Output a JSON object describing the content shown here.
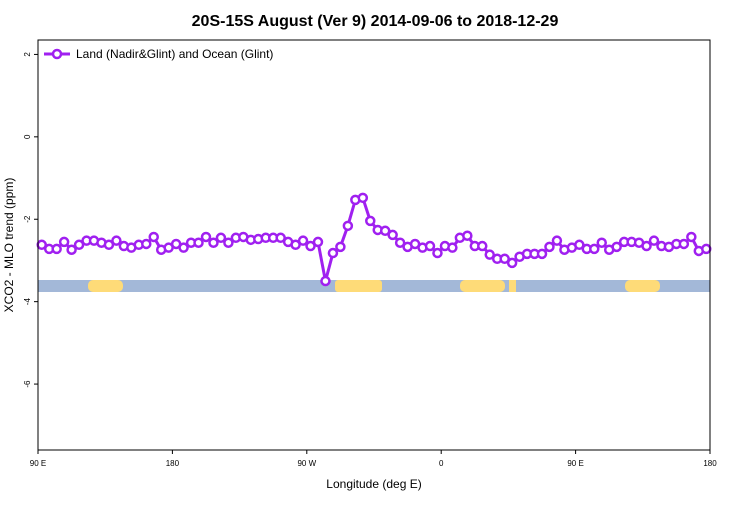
{
  "chart_data": {
    "type": "line",
    "title": "20S-15S August (Ver 9)   2014-09-06 to 2018-12-29",
    "x_label": "Longitude (deg E)",
    "y_label": "XCO2 - MLO trend (ppm)",
    "x": [
      92.5,
      97.5,
      102.5,
      107.5,
      112.5,
      117.5,
      122.5,
      127.5,
      132.5,
      137.5,
      142.5,
      147.5,
      152.5,
      157.5,
      162.5,
      167.5,
      172.5,
      177.5,
      182.5,
      187.5,
      192.5,
      197.5,
      202.5,
      207.5,
      212.5,
      217.5,
      222.5,
      227.5,
      232.5,
      237.5,
      242.5,
      247.5,
      252.5,
      257.5,
      262.5,
      267.5,
      272.5,
      277.5,
      282.5,
      287.5,
      292.5,
      297.5,
      302.5,
      307.5,
      312.5,
      317.5,
      322.5,
      327.5,
      332.5,
      337.5,
      342.5,
      347.5,
      352.5,
      357.5,
      362.5,
      367.5,
      372.5,
      377.5,
      382.5,
      387.5,
      392.5,
      397.5,
      402.5,
      407.5,
      412.5,
      417.5,
      422.5,
      427.5,
      432.5,
      437.5,
      442.5,
      447.5,
      452.5,
      457.5,
      462.5,
      467.5,
      472.5,
      477.5,
      482.5,
      487.5,
      492.5,
      497.5,
      502.5,
      507.5,
      512.5,
      517.5,
      522.5,
      527.5,
      532.5,
      537.5
    ],
    "series": [
      {
        "name": "Land (Nadir&Glint) and Ocean (Glint)",
        "color": "#a020f0",
        "values": [
          -2.62,
          -2.72,
          -2.72,
          -2.55,
          -2.74,
          -2.62,
          -2.52,
          -2.52,
          -2.57,
          -2.62,
          -2.52,
          -2.65,
          -2.69,
          -2.62,
          -2.6,
          -2.43,
          -2.74,
          -2.69,
          -2.6,
          -2.69,
          -2.57,
          -2.57,
          -2.43,
          -2.57,
          -2.45,
          -2.57,
          -2.45,
          -2.43,
          -2.5,
          -2.48,
          -2.45,
          -2.45,
          -2.45,
          -2.55,
          -2.62,
          -2.52,
          -2.65,
          -2.55,
          -3.5,
          -2.82,
          -2.67,
          -2.16,
          -1.53,
          -1.48,
          -2.04,
          -2.26,
          -2.28,
          -2.38,
          -2.57,
          -2.67,
          -2.6,
          -2.69,
          -2.65,
          -2.82,
          -2.65,
          -2.69,
          -2.45,
          -2.4,
          -2.65,
          -2.65,
          -2.86,
          -2.96,
          -2.96,
          -3.06,
          -2.91,
          -2.84,
          -2.84,
          -2.84,
          -2.67,
          -2.52,
          -2.74,
          -2.69,
          -2.62,
          -2.72,
          -2.72,
          -2.57,
          -2.74,
          -2.67,
          -2.55,
          -2.55,
          -2.57,
          -2.65,
          -2.52,
          -2.65,
          -2.67,
          -2.6,
          -2.6,
          -2.43,
          -2.77,
          -2.72
        ]
      }
    ],
    "xlim": [
      90,
      540
    ],
    "xticks": [
      {
        "value": 90,
        "label": "90 E"
      },
      {
        "value": 180,
        "label": "180"
      },
      {
        "value": 270,
        "label": "90 W"
      },
      {
        "value": 360,
        "label": "0"
      },
      {
        "value": 450,
        "label": "90 E"
      },
      {
        "value": 540,
        "label": "180"
      }
    ],
    "ylim": [
      -7.6,
      2.35
    ],
    "yticks": [
      -6,
      -4,
      -2,
      0,
      2
    ],
    "legend": "top-left"
  }
}
